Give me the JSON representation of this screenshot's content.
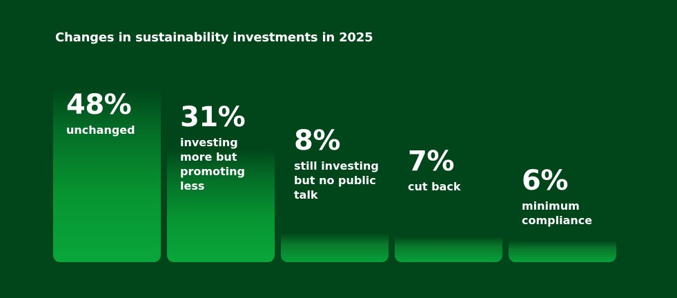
{
  "title": "Changes in sustainability investments in 2025",
  "chart_data": {
    "type": "bar",
    "title": "Changes in sustainability investments in 2025",
    "xlabel": "",
    "ylabel": "",
    "ylim": [
      0,
      50
    ],
    "grid": false,
    "categories": [
      "unchanged",
      "investing more but promoting less",
      "still investing but no public talk",
      "cut back",
      "minimum compliance"
    ],
    "labels": [
      "unchanged",
      "investing\nmore but\npromoting\nless",
      "still investing\nbut no public\ntalk",
      "cut back",
      "minimum\ncompliance"
    ],
    "value_labels": [
      "48%",
      "31%",
      "8%",
      "7%",
      "6%"
    ],
    "values": [
      48,
      31,
      8,
      7,
      6
    ],
    "unit": "%",
    "colors": {
      "background": "#00461a",
      "bar_top": "#00461a",
      "bar_bottom": "#09a63b",
      "text": "#ffffff"
    }
  }
}
